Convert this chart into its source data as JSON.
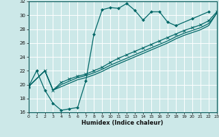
{
  "xlabel": "Humidex (Indice chaleur)",
  "background_color": "#cce8e8",
  "grid_color": "#ffffff",
  "line_color": "#006666",
  "xlim": [
    0,
    23
  ],
  "ylim": [
    16,
    32
  ],
  "xticks": [
    0,
    1,
    2,
    3,
    4,
    5,
    6,
    7,
    8,
    9,
    10,
    11,
    12,
    13,
    14,
    15,
    16,
    17,
    18,
    19,
    20,
    21,
    22,
    23
  ],
  "yticks": [
    16,
    18,
    20,
    22,
    24,
    26,
    28,
    30,
    32
  ],
  "series1_x": [
    0,
    1,
    2,
    3,
    4,
    5,
    6,
    7,
    8,
    9,
    10,
    11,
    12,
    13,
    14,
    15,
    16,
    17,
    18,
    20,
    22
  ],
  "series1_y": [
    19.7,
    22.0,
    19.2,
    17.3,
    16.3,
    16.5,
    16.7,
    20.5,
    27.3,
    30.8,
    31.1,
    31.0,
    31.7,
    30.7,
    29.3,
    30.5,
    30.5,
    29.0,
    28.5,
    29.5,
    30.5
  ],
  "series2_x": [
    0,
    2,
    3,
    4,
    5,
    6,
    7,
    8,
    9,
    10,
    11,
    12,
    13,
    14,
    15,
    16,
    17,
    18,
    19,
    20,
    21,
    22,
    23
  ],
  "series2_y": [
    19.7,
    22.0,
    19.2,
    20.3,
    20.8,
    21.2,
    21.5,
    22.0,
    22.5,
    23.2,
    23.8,
    24.3,
    24.8,
    25.3,
    25.8,
    26.3,
    26.8,
    27.3,
    27.8,
    28.2,
    28.6,
    29.2,
    30.5
  ],
  "series3_x": [
    0,
    2,
    3,
    4,
    5,
    6,
    7,
    8,
    9,
    10,
    11,
    12,
    13,
    14,
    15,
    16,
    17,
    18,
    19,
    20,
    21,
    22,
    23
  ],
  "series3_y": [
    19.7,
    22.0,
    19.2,
    20.0,
    20.5,
    21.0,
    21.3,
    21.7,
    22.2,
    22.8,
    23.3,
    23.8,
    24.3,
    24.8,
    25.3,
    25.8,
    26.3,
    26.9,
    27.4,
    27.8,
    28.2,
    28.8,
    30.3
  ],
  "series4_x": [
    0,
    2,
    3,
    4,
    5,
    6,
    7,
    8,
    9,
    10,
    11,
    12,
    13,
    14,
    15,
    16,
    17,
    18,
    19,
    20,
    21,
    22,
    23
  ],
  "series4_y": [
    19.7,
    22.0,
    19.2,
    19.7,
    20.2,
    20.7,
    21.0,
    21.4,
    21.9,
    22.5,
    23.0,
    23.5,
    24.0,
    24.5,
    25.0,
    25.5,
    26.0,
    26.6,
    27.1,
    27.5,
    27.9,
    28.5,
    30.3
  ]
}
